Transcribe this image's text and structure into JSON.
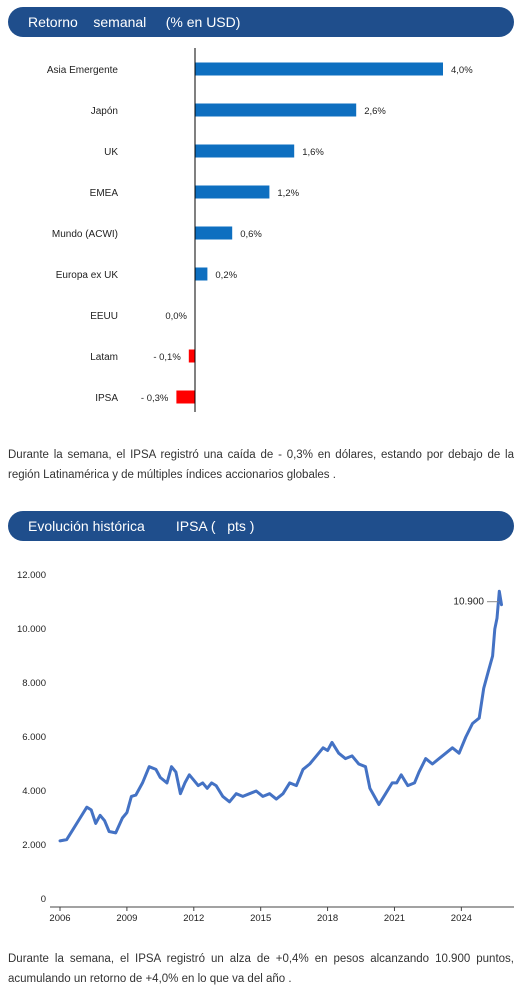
{
  "header1": {
    "title": "Retorno    semanal     (% en USD)"
  },
  "paragraph1": "Durante  la  semana,  el IPSA  registró  una  caída  de  - 0,3% en  dólares,  estando  por debajo  de  la  región  Latinamérica    y de  múltiples  índices  accionarios   globales  .",
  "header2": {
    "title": "Evolución histórica        IPSA (   pts )"
  },
  "paragraph2": "Durante  la  semana,  el IPSA  registró  un  alza  de  +0,4%  en  pesos  alcanzando  10.900  puntos,  acumulando    un  retorno  de  +4,0% en  lo  que  va  del  año .",
  "colors": {
    "header_bg": "#1f4e8c",
    "positive_bar": "#0e6fc0",
    "negative_bar": "#ff0000",
    "line": "#4472c4"
  },
  "chart_data": [
    {
      "type": "bar",
      "orientation": "horizontal",
      "title": "Retorno    semanal     (% en USD)",
      "categories": [
        "Asia Emergente",
        "Japón",
        "UK",
        "EMEA",
        "Mundo (ACWI)",
        "Europa ex UK",
        "EEUU",
        "Latam",
        "IPSA"
      ],
      "values": [
        4.0,
        2.6,
        1.6,
        1.2,
        0.6,
        0.2,
        0.0,
        -0.1,
        -0.3
      ],
      "data_labels": [
        "4,0%",
        "2,6%",
        "1,6%",
        "1,2%",
        "0,6%",
        "0,2%",
        "0,0%",
        "- 0,1%",
        "- 0,3%"
      ],
      "xlim": [
        -0.35,
        4.0
      ],
      "grid": false,
      "legend": "none"
    },
    {
      "type": "line",
      "title": "Evolución histórica        IPSA (   pts )",
      "xlim": [
        2006,
        2025.8
      ],
      "ylim": [
        0,
        12000
      ],
      "x_ticks": [
        2006,
        2009,
        2012,
        2015,
        2018,
        2021,
        2024
      ],
      "x_tick_labels": [
        "2006",
        "2009",
        "2012",
        "2015",
        "2018",
        "2021",
        "2024"
      ],
      "y_ticks": [
        0,
        2000,
        4000,
        6000,
        8000,
        10000,
        12000
      ],
      "y_tick_labels": [
        "0",
        "2.000",
        "4.000",
        "6.000",
        "8.000",
        "10.000",
        "12.000"
      ],
      "annotation": {
        "label": "10.900",
        "x": 2025.8,
        "y": 10900
      },
      "grid": false,
      "series": [
        {
          "x": [
            2006.0,
            2006.3,
            2006.6,
            2006.9,
            2007.2,
            2007.4,
            2007.6,
            2007.8,
            2008.0,
            2008.2,
            2008.5,
            2008.8,
            2009.0,
            2009.2,
            2009.4,
            2009.7,
            2010.0,
            2010.3,
            2010.5,
            2010.8,
            2011.0,
            2011.2,
            2011.4,
            2011.6,
            2011.8,
            2012.0,
            2012.2,
            2012.4,
            2012.6,
            2012.8,
            2013.0,
            2013.3,
            2013.6,
            2013.9,
            2014.2,
            2014.5,
            2014.8,
            2015.1,
            2015.4,
            2015.7,
            2016.0,
            2016.3,
            2016.6,
            2016.9,
            2017.2,
            2017.5,
            2017.8,
            2018.0,
            2018.2,
            2018.5,
            2018.8,
            2019.1,
            2019.4,
            2019.7,
            2019.9,
            2020.1,
            2020.3,
            2020.6,
            2020.9,
            2021.1,
            2021.3,
            2021.6,
            2021.9,
            2022.1,
            2022.4,
            2022.7,
            2023.0,
            2023.3,
            2023.6,
            2023.9,
            2024.2,
            2024.5,
            2024.8,
            2025.0,
            2025.2,
            2025.4,
            2025.5,
            2025.6,
            2025.7,
            2025.8
          ],
          "y": [
            2150,
            2200,
            2600,
            3000,
            3400,
            3300,
            2800,
            3100,
            2900,
            2500,
            2450,
            3000,
            3200,
            3800,
            3850,
            4300,
            4900,
            4800,
            4500,
            4300,
            4900,
            4700,
            3900,
            4300,
            4600,
            4400,
            4200,
            4300,
            4100,
            4300,
            4200,
            3800,
            3600,
            3900,
            3800,
            3900,
            4000,
            3800,
            3900,
            3700,
            3900,
            4300,
            4200,
            4800,
            5000,
            5300,
            5600,
            5500,
            5800,
            5400,
            5200,
            5300,
            5000,
            4900,
            4100,
            3800,
            3500,
            3900,
            4300,
            4300,
            4600,
            4200,
            4300,
            4700,
            5200,
            5000,
            5200,
            5400,
            5600,
            5400,
            6000,
            6500,
            6700,
            7800,
            8400,
            9000,
            10000,
            10400,
            11400,
            10900
          ]
        }
      ]
    }
  ]
}
